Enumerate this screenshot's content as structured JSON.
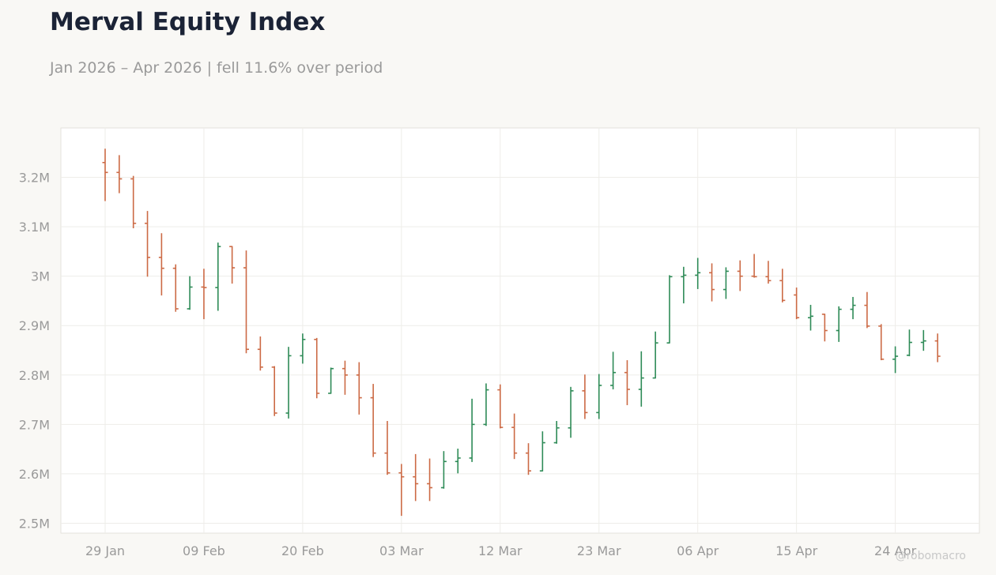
{
  "chart_data": {
    "type": "ohlc",
    "title": "Merval Equity Index",
    "subtitle": "Jan 2026 – Apr 2026 | fell 11.6% over period",
    "watermark": "@robomacro",
    "xlabel": "",
    "ylabel": "",
    "grid": true,
    "ylim": [
      2480000,
      3300000
    ],
    "x_tick_labels": [
      "29 Jan",
      "09 Feb",
      "20 Feb",
      "03 Mar",
      "12 Mar",
      "23 Mar",
      "06 Apr",
      "15 Apr",
      "24 Apr"
    ],
    "y_ticks": [
      {
        "value": 2500000,
        "label": "2.5M"
      },
      {
        "value": 2600000,
        "label": "2.6M"
      },
      {
        "value": 2700000,
        "label": "2.7M"
      },
      {
        "value": 2800000,
        "label": "2.8M"
      },
      {
        "value": 2900000,
        "label": "2.9M"
      },
      {
        "value": 3000000,
        "label": "3M"
      },
      {
        "value": 3100000,
        "label": "3.1M"
      },
      {
        "value": 3200000,
        "label": "3.2M"
      }
    ],
    "colors": {
      "up": "#2e8b57",
      "down": "#cc6a45"
    },
    "series": [
      {
        "date": "29 Jan",
        "open": 3230000,
        "high": 3258000,
        "low": 3152000,
        "close": 3210000
      },
      {
        "date": "",
        "open": 3210000,
        "high": 3245000,
        "low": 3168000,
        "close": 3197000
      },
      {
        "date": "",
        "open": 3197000,
        "high": 3203000,
        "low": 3097000,
        "close": 3107000
      },
      {
        "date": "",
        "open": 3107000,
        "high": 3132000,
        "low": 2999000,
        "close": 3038000
      },
      {
        "date": "",
        "open": 3038000,
        "high": 3087000,
        "low": 2961000,
        "close": 3016000
      },
      {
        "date": "",
        "open": 3016000,
        "high": 3024000,
        "low": 2928000,
        "close": 2934000
      },
      {
        "date": "",
        "open": 2934000,
        "high": 3000000,
        "low": 2932000,
        "close": 2978000
      },
      {
        "date": "09 Feb",
        "open": 2978000,
        "high": 3015000,
        "low": 2913000,
        "close": 2977000
      },
      {
        "date": "",
        "open": 2977000,
        "high": 3068000,
        "low": 2930000,
        "close": 3060000
      },
      {
        "date": "",
        "open": 3060000,
        "high": 3061000,
        "low": 2985000,
        "close": 3017000
      },
      {
        "date": "",
        "open": 3017000,
        "high": 3052000,
        "low": 2844000,
        "close": 2852000
      },
      {
        "date": "",
        "open": 2852000,
        "high": 2878000,
        "low": 2809000,
        "close": 2816000
      },
      {
        "date": "",
        "open": 2816000,
        "high": 2818000,
        "low": 2717000,
        "close": 2723000
      },
      {
        "date": "",
        "open": 2723000,
        "high": 2857000,
        "low": 2712000,
        "close": 2839000
      },
      {
        "date": "20 Feb",
        "open": 2839000,
        "high": 2884000,
        "low": 2823000,
        "close": 2872000
      },
      {
        "date": "",
        "open": 2872000,
        "high": 2875000,
        "low": 2753000,
        "close": 2763000
      },
      {
        "date": "",
        "open": 2763000,
        "high": 2815000,
        "low": 2762000,
        "close": 2813000
      },
      {
        "date": "",
        "open": 2813000,
        "high": 2829000,
        "low": 2760000,
        "close": 2800000
      },
      {
        "date": "",
        "open": 2800000,
        "high": 2826000,
        "low": 2720000,
        "close": 2754000
      },
      {
        "date": "",
        "open": 2754000,
        "high": 2782000,
        "low": 2634000,
        "close": 2642000
      },
      {
        "date": "",
        "open": 2642000,
        "high": 2707000,
        "low": 2598000,
        "close": 2602000
      },
      {
        "date": "03 Mar",
        "open": 2602000,
        "high": 2620000,
        "low": 2515000,
        "close": 2594000
      },
      {
        "date": "",
        "open": 2594000,
        "high": 2640000,
        "low": 2545000,
        "close": 2580000
      },
      {
        "date": "",
        "open": 2580000,
        "high": 2631000,
        "low": 2545000,
        "close": 2572000
      },
      {
        "date": "",
        "open": 2572000,
        "high": 2646000,
        "low": 2570000,
        "close": 2625000
      },
      {
        "date": "",
        "open": 2625000,
        "high": 2651000,
        "low": 2601000,
        "close": 2632000
      },
      {
        "date": "",
        "open": 2632000,
        "high": 2752000,
        "low": 2624000,
        "close": 2700000
      },
      {
        "date": "",
        "open": 2700000,
        "high": 2783000,
        "low": 2697000,
        "close": 2770000
      },
      {
        "date": "12 Mar",
        "open": 2770000,
        "high": 2781000,
        "low": 2692000,
        "close": 2694000
      },
      {
        "date": "",
        "open": 2694000,
        "high": 2722000,
        "low": 2630000,
        "close": 2642000
      },
      {
        "date": "",
        "open": 2642000,
        "high": 2662000,
        "low": 2598000,
        "close": 2606000
      },
      {
        "date": "",
        "open": 2606000,
        "high": 2686000,
        "low": 2605000,
        "close": 2663000
      },
      {
        "date": "",
        "open": 2663000,
        "high": 2707000,
        "low": 2661000,
        "close": 2693000
      },
      {
        "date": "",
        "open": 2693000,
        "high": 2776000,
        "low": 2673000,
        "close": 2768000
      },
      {
        "date": "",
        "open": 2768000,
        "high": 2801000,
        "low": 2711000,
        "close": 2724000
      },
      {
        "date": "23 Mar",
        "open": 2724000,
        "high": 2802000,
        "low": 2711000,
        "close": 2779000
      },
      {
        "date": "",
        "open": 2779000,
        "high": 2847000,
        "low": 2771000,
        "close": 2805000
      },
      {
        "date": "",
        "open": 2805000,
        "high": 2830000,
        "low": 2739000,
        "close": 2771000
      },
      {
        "date": "",
        "open": 2771000,
        "high": 2848000,
        "low": 2736000,
        "close": 2794000
      },
      {
        "date": "",
        "open": 2794000,
        "high": 2888000,
        "low": 2793000,
        "close": 2865000
      },
      {
        "date": "",
        "open": 2865000,
        "high": 3002000,
        "low": 2864000,
        "close": 2999000
      },
      {
        "date": "",
        "open": 2999000,
        "high": 3019000,
        "low": 2945000,
        "close": 3002000
      },
      {
        "date": "06 Apr",
        "open": 3002000,
        "high": 3037000,
        "low": 2974000,
        "close": 3007000
      },
      {
        "date": "",
        "open": 3007000,
        "high": 3026000,
        "low": 2949000,
        "close": 2973000
      },
      {
        "date": "",
        "open": 2973000,
        "high": 3018000,
        "low": 2954000,
        "close": 3010000
      },
      {
        "date": "",
        "open": 3010000,
        "high": 3032000,
        "low": 2970000,
        "close": 3000000
      },
      {
        "date": "",
        "open": 3000000,
        "high": 3045000,
        "low": 2997000,
        "close": 2999000
      },
      {
        "date": "",
        "open": 2999000,
        "high": 3031000,
        "low": 2985000,
        "close": 2991000
      },
      {
        "date": "",
        "open": 2991000,
        "high": 3015000,
        "low": 2947000,
        "close": 2951000
      },
      {
        "date": "15 Apr",
        "open": 2962000,
        "high": 2977000,
        "low": 2913000,
        "close": 2916000
      },
      {
        "date": "",
        "open": 2916000,
        "high": 2942000,
        "low": 2890000,
        "close": 2919000
      },
      {
        "date": "",
        "open": 2923000,
        "high": 2924000,
        "low": 2868000,
        "close": 2890000
      },
      {
        "date": "",
        "open": 2890000,
        "high": 2939000,
        "low": 2867000,
        "close": 2933000
      },
      {
        "date": "",
        "open": 2933000,
        "high": 2958000,
        "low": 2913000,
        "close": 2941000
      },
      {
        "date": "",
        "open": 2941000,
        "high": 2968000,
        "low": 2895000,
        "close": 2899000
      },
      {
        "date": "",
        "open": 2899000,
        "high": 2903000,
        "low": 2830000,
        "close": 2832000
      },
      {
        "date": "24 Apr",
        "open": 2832000,
        "high": 2858000,
        "low": 2804000,
        "close": 2838000
      },
      {
        "date": "",
        "open": 2840000,
        "high": 2892000,
        "low": 2838000,
        "close": 2866000
      },
      {
        "date": "",
        "open": 2866000,
        "high": 2891000,
        "low": 2849000,
        "close": 2869000
      },
      {
        "date": "",
        "open": 2869000,
        "high": 2884000,
        "low": 2826000,
        "close": 2838000
      }
    ]
  }
}
